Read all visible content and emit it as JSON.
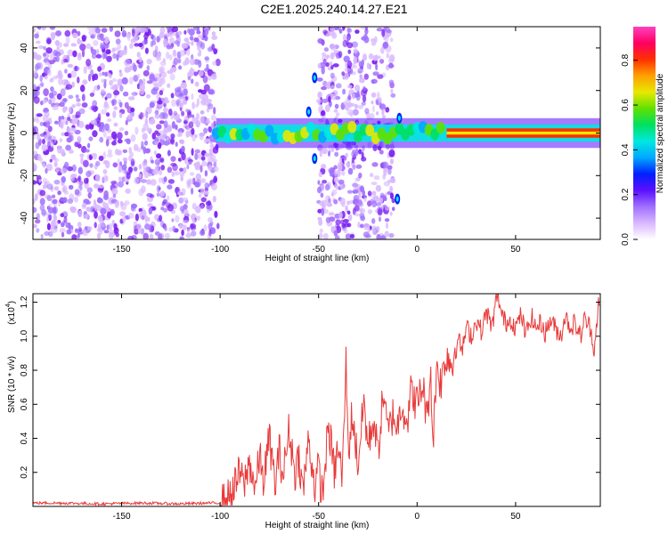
{
  "title": "C2E1.2025.240.14.27.E21",
  "colors": {
    "line": "#e83a3a",
    "axes": "#000000",
    "speckle": "#7a1cf0",
    "colormap": [
      "#ffffff",
      "#d9b8ff",
      "#a070ff",
      "#5a10ff",
      "#0020ff",
      "#00a8ff",
      "#00e8e0",
      "#00e060",
      "#60e000",
      "#e8e800",
      "#ffa000",
      "#ff3000",
      "#ff0060",
      "#ff40c0"
    ]
  },
  "chart_data": [
    {
      "type": "heatmap",
      "name": "spectrogram",
      "xlabel": "Height of straight line (km)",
      "ylabel": "Frequency (Hz)",
      "xlim": [
        -195,
        93
      ],
      "ylim": [
        -50,
        50
      ],
      "x_ticks": [
        -150,
        -100,
        -50,
        0,
        50
      ],
      "x_tick_labels": [
        "-150",
        "-100",
        "-50",
        "0",
        "50"
      ],
      "y_ticks": [
        -40,
        -20,
        0,
        20,
        40
      ],
      "y_tick_labels": [
        "-40",
        "-20",
        "0",
        "20",
        "40"
      ],
      "noise_regions": [
        {
          "x_start": -195,
          "x_end": -101
        },
        {
          "x_start": -50,
          "x_end": -12
        }
      ],
      "signal_band": {
        "x_start": -102,
        "x_end": 93,
        "center_hz": 0,
        "half_width_hz": 2
      },
      "peaks": [
        {
          "x": -52,
          "y": 26
        },
        {
          "x": -55,
          "y": 10
        },
        {
          "x": -52,
          "y": -12
        },
        {
          "x": -9,
          "y": 7
        },
        {
          "x": -10,
          "y": -31
        }
      ],
      "colorbar": {
        "label": "Normalized spectral amplitude",
        "range": [
          0,
          0.95
        ],
        "ticks": [
          0,
          0.2,
          0.4,
          0.6,
          0.8
        ],
        "tick_labels": [
          "0.0",
          "0.2",
          "0.4",
          "0.6",
          "0.8"
        ]
      }
    },
    {
      "type": "line",
      "name": "snr",
      "xlabel": "Height of straight line (km)",
      "ylabel": "SNR (10 * v/v)",
      "scale_label": "(x10",
      "scale_exponent": "4",
      "xlim": [
        -195,
        93
      ],
      "ylim": [
        0,
        1.25
      ],
      "x_ticks": [
        -150,
        -100,
        -50,
        0,
        50
      ],
      "x_tick_labels": [
        "-150",
        "-100",
        "-50",
        "0",
        "50"
      ],
      "y_ticks": [
        0.2,
        0.4,
        0.6,
        0.8,
        1.0,
        1.2
      ],
      "y_tick_labels": [
        "0.2",
        "0.4",
        "0.6",
        "0.8",
        "1.0",
        "1.2"
      ],
      "series": [
        {
          "x": [
            -195,
            -180,
            -160,
            -140,
            -120,
            -105,
            -100,
            -97,
            -95,
            -93,
            -90,
            -88,
            -85,
            -82,
            -80,
            -78,
            -75,
            -72,
            -70,
            -68,
            -65,
            -62,
            -60,
            -58,
            -55,
            -52,
            -50,
            -48,
            -45,
            -42,
            -40,
            -38,
            -36,
            -35,
            -33,
            -30,
            -27,
            -25,
            -22,
            -20,
            -17,
            -15,
            -12,
            -10,
            -8,
            -5,
            -3,
            0,
            3,
            5,
            7,
            8,
            10,
            12,
            15,
            18,
            20,
            23,
            25,
            28,
            30,
            33,
            35,
            38,
            40,
            41,
            43,
            45,
            48,
            50,
            53,
            55,
            58,
            60,
            63,
            65,
            68,
            70,
            73,
            75,
            78,
            80,
            83,
            85,
            88,
            90,
            92,
            93
          ],
          "y": [
            0.02,
            0.02,
            0.015,
            0.02,
            0.015,
            0.02,
            0.02,
            0.03,
            0.06,
            0.1,
            0.2,
            0.12,
            0.26,
            0.1,
            0.3,
            0.15,
            0.4,
            0.12,
            0.33,
            0.18,
            0.45,
            0.2,
            0.3,
            0.08,
            0.4,
            0.12,
            0.22,
            0.06,
            0.48,
            0.2,
            0.35,
            0.15,
            0.88,
            0.3,
            0.55,
            0.25,
            0.62,
            0.35,
            0.52,
            0.3,
            0.68,
            0.42,
            0.55,
            0.45,
            0.62,
            0.5,
            0.68,
            0.6,
            0.72,
            0.5,
            0.82,
            0.35,
            0.85,
            0.72,
            0.9,
            0.82,
            1.0,
            0.92,
            1.05,
            1.0,
            1.1,
            1.02,
            1.15,
            1.05,
            1.2,
            1.25,
            1.12,
            1.08,
            1.1,
            1.05,
            1.13,
            1.0,
            1.12,
            1.05,
            1.08,
            1.02,
            1.1,
            1.05,
            1.0,
            1.12,
            1.05,
            1.08,
            1.0,
            1.1,
            1.05,
            0.92,
            1.2,
            1.1
          ]
        }
      ]
    }
  ]
}
